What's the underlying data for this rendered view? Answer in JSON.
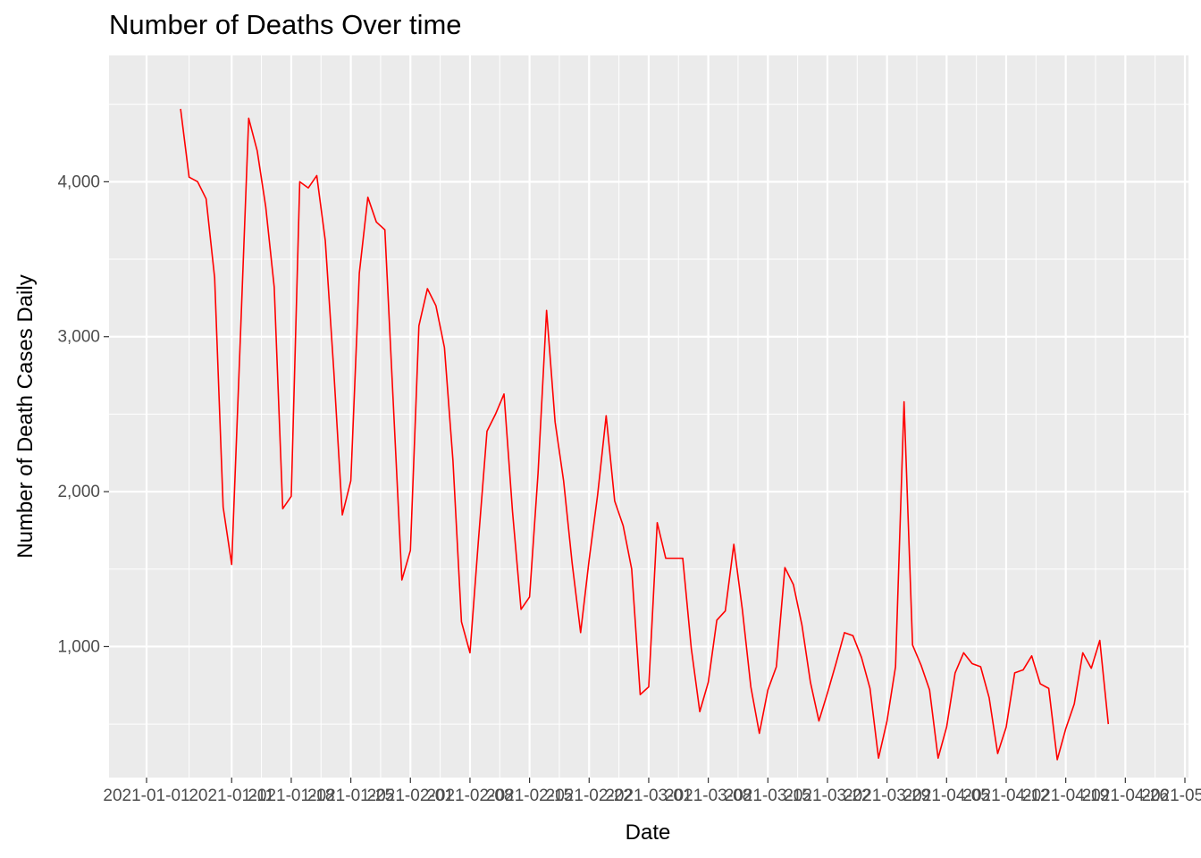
{
  "chart_data": {
    "type": "line",
    "title": "Number of Deaths Over time",
    "xlabel": "Date",
    "ylabel": "Number of Death Cases Daily",
    "x_start": "2021-01-05",
    "xlim": [
      "2021-01-01",
      "2021-05-03"
    ],
    "x_ticks": [
      "2021-01-01",
      "2021-01-11",
      "2021-01-18",
      "2021-01-25",
      "2021-02-01",
      "2021-02-08",
      "2021-02-15",
      "2021-02-22",
      "2021-03-01",
      "2021-03-08",
      "2021-03-15",
      "2021-03-22",
      "2021-03-29",
      "2021-04-05",
      "2021-04-12",
      "2021-04-19",
      "2021-04-26",
      "2021-05-03"
    ],
    "x_tick_labels": [
      "2021-01-01",
      "2021-01-11",
      "2021-01-18",
      "2021-01-25",
      "2021-02-01",
      "2021-02-08",
      "2021-02-15",
      "2021-02-22",
      "2021-03-01",
      "2021-03-08",
      "2021-03-15",
      "2021-03-22",
      "2021-03-29",
      "2021-04-05",
      "2021-04-12",
      "2021-04-19",
      "2021-04-26",
      "2021-05-03"
    ],
    "ylim": [
      270,
      4700
    ],
    "y_ticks": [
      1000,
      2000,
      3000,
      4000
    ],
    "y_tick_labels": [
      "1,000",
      "2,000",
      "3,000",
      "4,000"
    ],
    "grid": true,
    "series": [
      {
        "color": "#ff0000",
        "values": [
          4470,
          4030,
          4000,
          3890,
          3380,
          1900,
          1530,
          2960,
          4410,
          4200,
          3840,
          3320,
          1890,
          1970,
          4000,
          3960,
          4040,
          3620,
          2780,
          1850,
          2070,
          3410,
          3900,
          3740,
          3690,
          2560,
          1430,
          1620,
          3070,
          3310,
          3200,
          2930,
          2200,
          1160,
          960,
          1690,
          2390,
          2500,
          2630,
          1870,
          1240,
          1320,
          2120,
          3170,
          2450,
          2070,
          1540,
          1090,
          1560,
          1980,
          2490,
          1940,
          1780,
          1500,
          690,
          740,
          1800,
          1570,
          1570,
          1570,
          990,
          580,
          770,
          1170,
          1230,
          1660,
          1240,
          740,
          440,
          720,
          870,
          1510,
          1400,
          1140,
          770,
          520,
          700,
          890,
          1090,
          1070,
          930,
          730,
          280,
          520,
          870,
          2580,
          1010,
          880,
          720,
          280,
          480,
          830,
          960,
          890,
          870,
          670,
          310,
          480,
          830,
          850,
          940,
          760,
          730,
          270,
          470,
          630,
          960,
          860,
          1040,
          500
        ]
      }
    ]
  }
}
